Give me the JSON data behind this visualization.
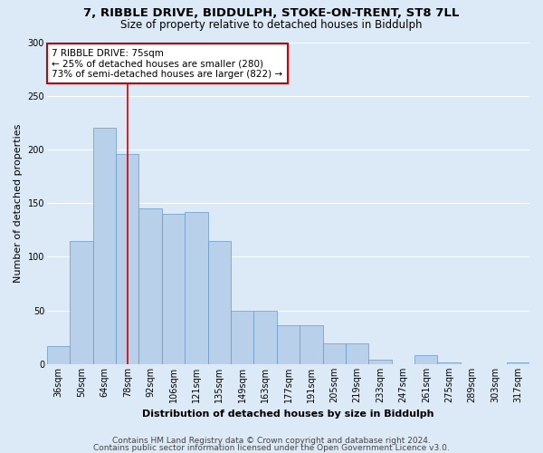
{
  "title_line1": "7, RIBBLE DRIVE, BIDDULPH, STOKE-ON-TRENT, ST8 7LL",
  "title_line2": "Size of property relative to detached houses in Biddulph",
  "xlabel": "Distribution of detached houses by size in Biddulph",
  "ylabel": "Number of detached properties",
  "categories": [
    "36sqm",
    "50sqm",
    "64sqm",
    "78sqm",
    "92sqm",
    "106sqm",
    "121sqm",
    "135sqm",
    "149sqm",
    "163sqm",
    "177sqm",
    "191sqm",
    "205sqm",
    "219sqm",
    "233sqm",
    "247sqm",
    "261sqm",
    "275sqm",
    "289sqm",
    "303sqm",
    "317sqm"
  ],
  "values": [
    17,
    115,
    220,
    196,
    145,
    140,
    142,
    115,
    50,
    50,
    36,
    36,
    19,
    19,
    4,
    0,
    8,
    2,
    0,
    0,
    2
  ],
  "bar_color": "#b8d0ea",
  "bar_edge_color": "#6699cc",
  "bar_edge_width": 0.5,
  "vline_color": "#cc0000",
  "annotation_text": "7 RIBBLE DRIVE: 75sqm\n← 25% of detached houses are smaller (280)\n73% of semi-detached houses are larger (822) →",
  "annotation_box_color": "#ffffff",
  "annotation_box_edge": "#cc0000",
  "annotation_fontsize": 7.5,
  "ylim": [
    0,
    300
  ],
  "yticks": [
    0,
    50,
    100,
    150,
    200,
    250,
    300
  ],
  "background_color": "#dce9f7",
  "plot_bg_color": "#dce9f7",
  "grid_color": "#ffffff",
  "footer_line1": "Contains HM Land Registry data © Crown copyright and database right 2024.",
  "footer_line2": "Contains public sector information licensed under the Open Government Licence v3.0.",
  "title_fontsize": 9.5,
  "subtitle_fontsize": 8.5,
  "ylabel_fontsize": 8,
  "xlabel_fontsize": 8,
  "tick_fontsize": 7,
  "footer_fontsize": 6.5
}
